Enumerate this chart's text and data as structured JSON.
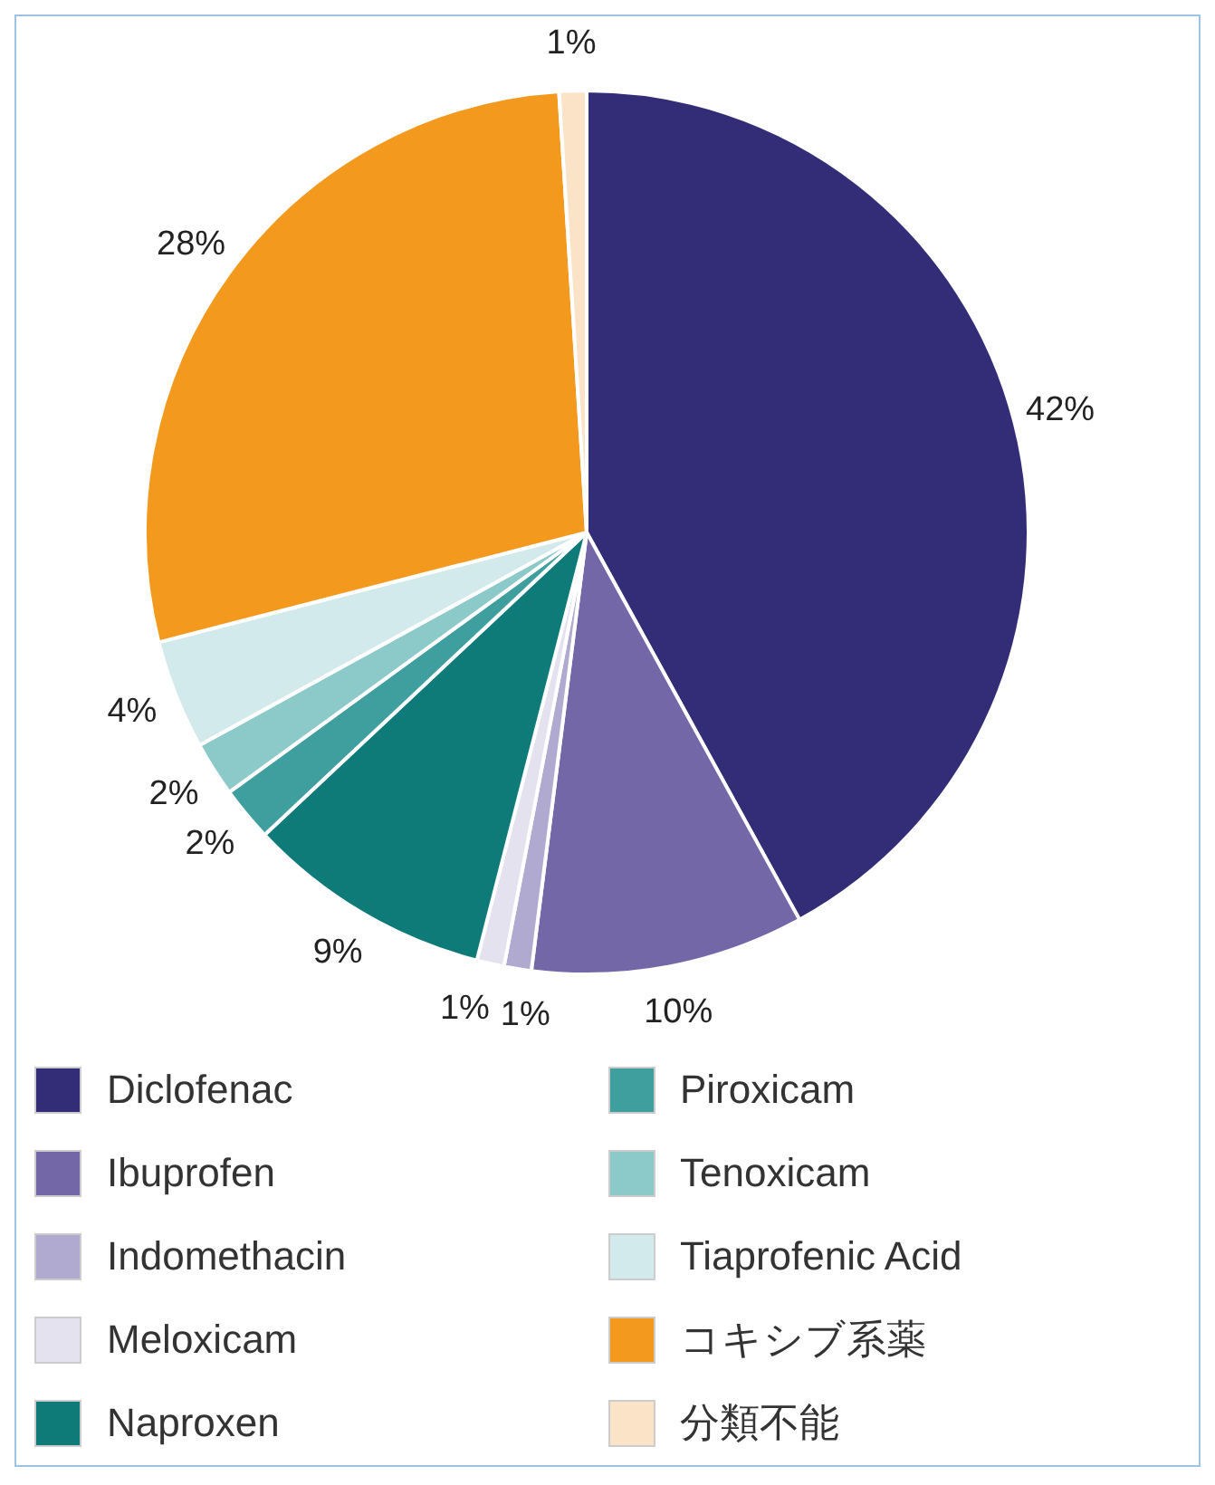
{
  "chart_data": {
    "type": "pie",
    "categories": [
      "Diclofenac",
      "Ibuprofen",
      "Indomethacin",
      "Meloxicam",
      "Naproxen",
      "Piroxicam",
      "Tenoxicam",
      "Tiaprofenic Acid",
      "コキシブ系薬",
      "分類不能"
    ],
    "values": [
      42,
      10,
      1,
      1,
      9,
      2,
      2,
      4,
      28,
      1
    ],
    "colors": [
      "#332d78",
      "#7367a8",
      "#b0aad0",
      "#e4e2ee",
      "#0f7b78",
      "#3f9f9e",
      "#8cc9c9",
      "#d3eaec",
      "#f39a1e",
      "#fbe3c8"
    ],
    "value_labels": [
      "42%",
      "10%",
      "1%",
      "1%",
      "9%",
      "2%",
      "2%",
      "4%",
      "28%",
      "1%"
    ],
    "legend": "bottom"
  }
}
